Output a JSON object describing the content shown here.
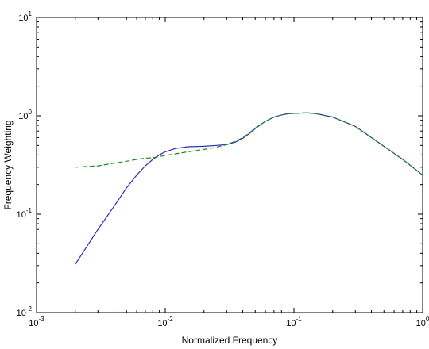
{
  "chart_data": {
    "type": "line",
    "title": "",
    "xlabel": "Normalized Frequency",
    "ylabel": "Frequency Weighting",
    "xscale": "log",
    "yscale": "log",
    "xlim": [
      0.001,
      1
    ],
    "ylim": [
      0.01,
      10
    ],
    "grid": false,
    "legend": "none",
    "x_ticks": [
      {
        "base": "10",
        "exp": "-3"
      },
      {
        "base": "10",
        "exp": "-2"
      },
      {
        "base": "10",
        "exp": "-1"
      },
      {
        "base": "10",
        "exp": "0"
      }
    ],
    "y_ticks": [
      {
        "base": "10",
        "exp": "-2"
      },
      {
        "base": "10",
        "exp": "-1"
      },
      {
        "base": "10",
        "exp": "0"
      },
      {
        "base": "10",
        "exp": "1"
      }
    ],
    "series": [
      {
        "color": "#2b2bbf",
        "style": "solid",
        "x": [
          0.002,
          0.003,
          0.004,
          0.005,
          0.006,
          0.007,
          0.008,
          0.009,
          0.01,
          0.012,
          0.015,
          0.02,
          0.025,
          0.03,
          0.035,
          0.04,
          0.045,
          0.05,
          0.06,
          0.07,
          0.08,
          0.09,
          0.1,
          0.12,
          0.13,
          0.15,
          0.2,
          0.3,
          0.4,
          0.5,
          0.7,
          1.0
        ],
        "y": [
          0.031,
          0.07,
          0.12,
          0.185,
          0.25,
          0.31,
          0.36,
          0.4,
          0.43,
          0.465,
          0.485,
          0.49,
          0.5,
          0.51,
          0.54,
          0.59,
          0.66,
          0.74,
          0.88,
          0.97,
          1.02,
          1.05,
          1.06,
          1.07,
          1.07,
          1.05,
          0.97,
          0.78,
          0.6,
          0.49,
          0.36,
          0.25
        ]
      },
      {
        "color": "#1f8a1f",
        "style": "dashed",
        "x": [
          0.002,
          0.003,
          0.004,
          0.005,
          0.006,
          0.007,
          0.008,
          0.009,
          0.01,
          0.012,
          0.015,
          0.02,
          0.025,
          0.03,
          0.035,
          0.04,
          0.045,
          0.05,
          0.06,
          0.07,
          0.08,
          0.09,
          0.1,
          0.12,
          0.13,
          0.15,
          0.2,
          0.3,
          0.4,
          0.5,
          0.7,
          1.0
        ],
        "y": [
          0.3,
          0.31,
          0.33,
          0.345,
          0.36,
          0.37,
          0.375,
          0.385,
          0.395,
          0.41,
          0.43,
          0.455,
          0.48,
          0.51,
          0.55,
          0.6,
          0.67,
          0.75,
          0.88,
          0.97,
          1.02,
          1.05,
          1.06,
          1.07,
          1.07,
          1.05,
          0.97,
          0.78,
          0.6,
          0.49,
          0.36,
          0.25
        ]
      }
    ]
  }
}
